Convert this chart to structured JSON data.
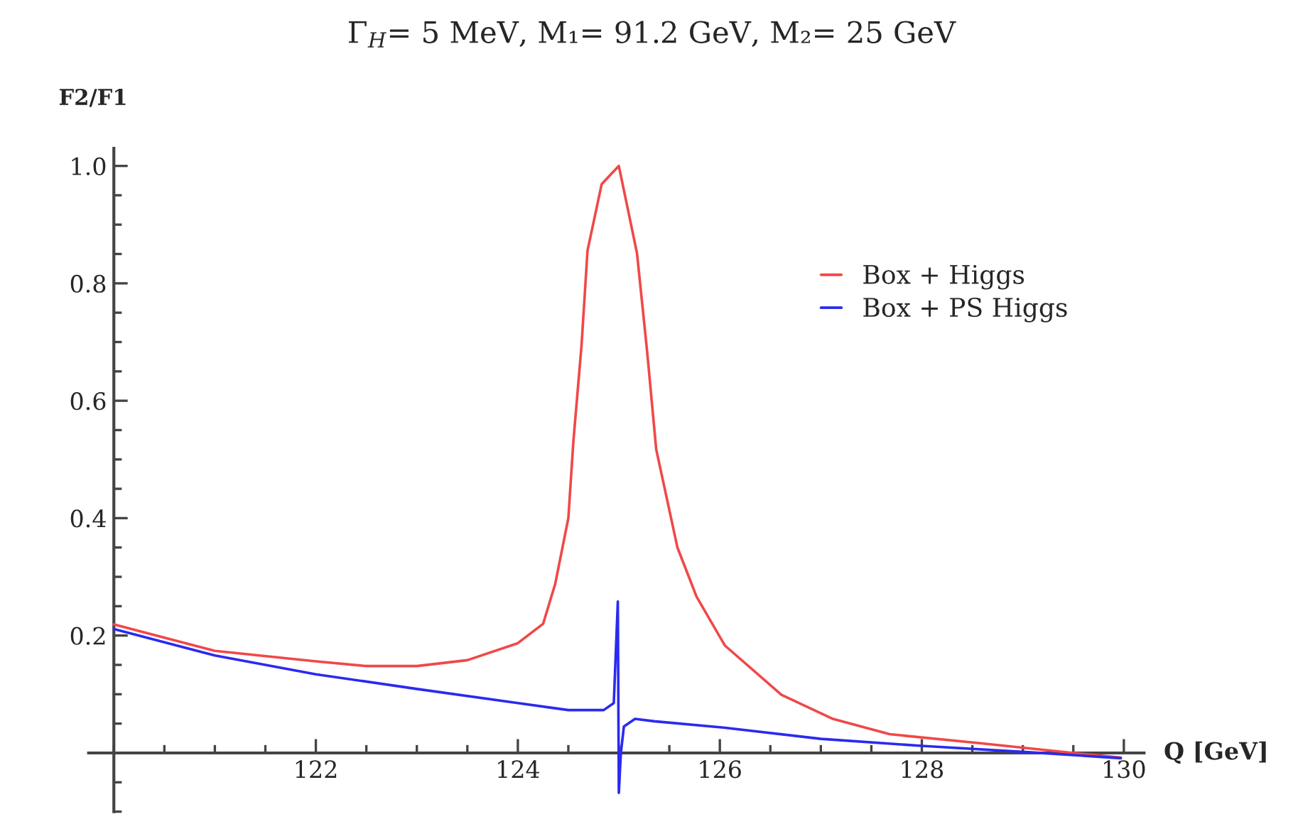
{
  "chart_data": {
    "type": "line",
    "title": "Γ$_{H}$= 5 MeV, M₁= 91.2 GeV, M₂= 25 GeV",
    "xlabel": "Q [GeV]",
    "ylabel": "F2/F1",
    "xlim": [
      119.75,
      130.2
    ],
    "ylim": [
      -0.1,
      1.03
    ],
    "xticks": [
      122,
      124,
      126,
      128,
      130
    ],
    "yticks": [
      0.2,
      0.4,
      0.6,
      0.8,
      {
        "value": 1.0,
        "label": "1.0"
      }
    ],
    "grid": false,
    "legend": "top right",
    "marker": "none",
    "line_style": "solid",
    "series": [
      {
        "name": "Box + Higgs",
        "color": "#f04848",
        "x": [
          120,
          121,
          122,
          122.5,
          123,
          123.5,
          124,
          124.25,
          124.37,
          124.5,
          124.55,
          124.63,
          124.69,
          124.83,
          125.0,
          125.18,
          125.28,
          125.37,
          125.58,
          125.77,
          126.05,
          126.61,
          127.12,
          127.68,
          128.61,
          129.55,
          129.97
        ],
        "values": [
          0.219,
          0.174,
          0.156,
          0.148,
          0.148,
          0.158,
          0.187,
          0.22,
          0.288,
          0.4,
          0.531,
          0.693,
          0.856,
          0.969,
          1.0,
          0.851,
          0.684,
          0.517,
          0.35,
          0.266,
          0.183,
          0.099,
          0.058,
          0.032,
          0.016,
          -0.001,
          -0.008
        ]
      },
      {
        "name": "Box + PS Higgs",
        "color": "#2a2af0",
        "x": [
          120,
          121,
          122,
          123,
          124,
          124.5,
          124.85,
          124.95,
          124.99,
          125.0,
          125.02,
          125.05,
          125.16,
          125.35,
          126.05,
          127.0,
          128.0,
          129.08,
          129.97
        ],
        "values": [
          0.211,
          0.166,
          0.134,
          0.109,
          0.085,
          0.073,
          0.073,
          0.085,
          0.258,
          -0.068,
          0.0,
          0.045,
          0.058,
          0.054,
          0.043,
          0.024,
          0.012,
          0.001,
          -0.009
        ]
      }
    ]
  }
}
